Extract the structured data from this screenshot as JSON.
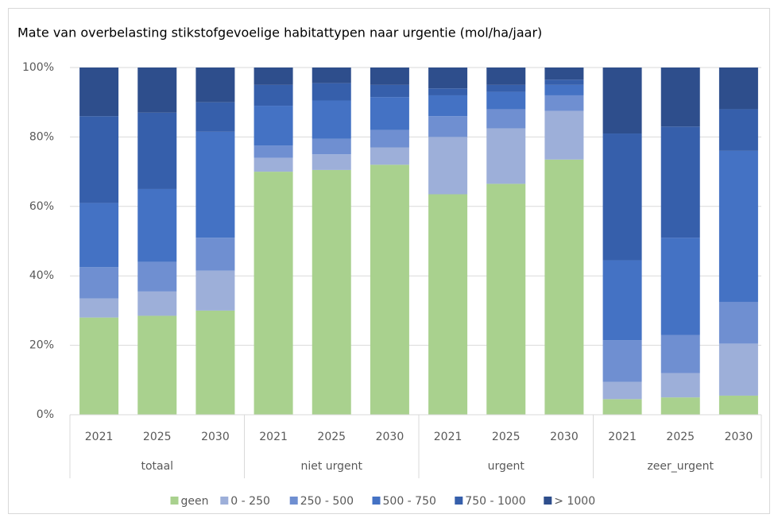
{
  "chart_data": {
    "type": "stacked_bar",
    "title": "Mate van overbelasting stikstofgevoelige habitattypen naar urgentie (mol/ha/jaar)",
    "categories": [
      "2021",
      "2025",
      "2030",
      "2021",
      "2025",
      "2030",
      "2021",
      "2025",
      "2030",
      "2021",
      "2025",
      "2030"
    ],
    "category_groups": [
      "totaal",
      "niet urgent",
      "urgent",
      "zeer_urgent"
    ],
    "series": [
      {
        "name": "geen",
        "color": "#a9d18e",
        "values": [
          28,
          28.5,
          30,
          70,
          70.5,
          72,
          63.5,
          66.5,
          73.5,
          4.5,
          5,
          5.5
        ]
      },
      {
        "name": "0 - 250",
        "color": "#9dafd9",
        "values": [
          5.5,
          7,
          11.5,
          4,
          4.5,
          5,
          16.5,
          16,
          14,
          5,
          7,
          15
        ]
      },
      {
        "name": "250 - 500",
        "color": "#6f8fd1",
        "values": [
          9,
          8.5,
          9.5,
          3.5,
          4.5,
          5,
          6,
          5.5,
          4.5,
          12,
          11,
          12
        ]
      },
      {
        "name": "500 - 750",
        "color": "#4472c4",
        "values": [
          18.5,
          21,
          30.5,
          11.5,
          11,
          9.5,
          6,
          5,
          3,
          23,
          28,
          43.5
        ]
      },
      {
        "name": "750 - 1000",
        "color": "#365fab",
        "values": [
          25,
          22,
          8.5,
          6,
          5,
          3.5,
          2,
          2,
          1.5,
          36.5,
          32,
          12
        ]
      },
      {
        "name": "> 1000",
        "color": "#2e4e8c",
        "values": [
          14,
          13,
          10,
          5,
          4.5,
          5,
          6,
          5,
          3.5,
          19,
          17,
          12
        ]
      }
    ],
    "ylim": [
      0,
      100
    ],
    "yticks": [
      {
        "value": 0,
        "label": "0%"
      },
      {
        "value": 20,
        "label": "20%"
      },
      {
        "value": 40,
        "label": "40%"
      },
      {
        "value": 60,
        "label": "60%"
      },
      {
        "value": 80,
        "label": "80%"
      },
      {
        "value": 100,
        "label": "100%"
      }
    ],
    "grid": true,
    "legend": "bottom"
  }
}
